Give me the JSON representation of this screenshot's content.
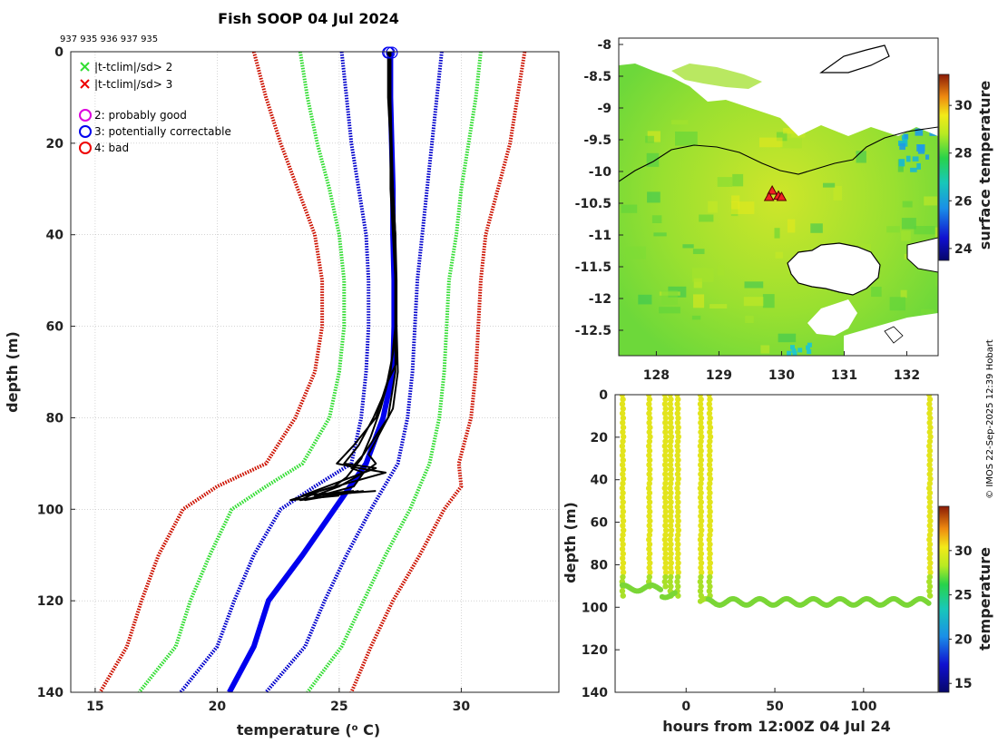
{
  "colors": {
    "limit_inner": "#33dd33",
    "limit_mid": "#0000cc",
    "limit_outer": "#cc1100",
    "profile": "#000000",
    "mean_profile": "#0000ee",
    "flag_good": "#dd00dd",
    "flag_correctable": "#0000ee",
    "flag_bad": "#ee0000",
    "land": "#ffffff"
  },
  "chart_data": [
    {
      "id": "profiles",
      "type": "line",
      "title": "Fish SOOP 04 Jul 2024",
      "subtitle": "937 935 936 937 935",
      "xlabel": "temperature (",
      "xlabel_sup": "o",
      "xlabel_end": " C)",
      "ylabel": "depth (m)",
      "xlim": [
        14,
        34
      ],
      "ylim": [
        0,
        140
      ],
      "xticks": [
        15,
        20,
        25,
        30
      ],
      "yticks": [
        0,
        20,
        40,
        60,
        80,
        100,
        120,
        140
      ],
      "legend": {
        "placement": "top-left",
        "crosses": [
          {
            "label": "|t-tclim|/sd> 2",
            "color": "#33dd33"
          },
          {
            "label": "|t-tclim|/sd> 3",
            "color": "#ee0000"
          }
        ],
        "circles": [
          {
            "label": "2: probably good",
            "color": "#dd00dd"
          },
          {
            "label": "3: potentially correctable",
            "color": "#0000ee"
          },
          {
            "label": "4: bad",
            "color": "#ee0000"
          }
        ]
      },
      "limit_curves": [
        {
          "name": "outer-left",
          "color": "#cc1100",
          "points": [
            [
              21.5,
              0
            ],
            [
              22.0,
              10
            ],
            [
              22.6,
              20
            ],
            [
              23.3,
              30
            ],
            [
              24.0,
              40
            ],
            [
              24.3,
              50
            ],
            [
              24.3,
              60
            ],
            [
              24.0,
              70
            ],
            [
              23.2,
              80
            ],
            [
              22.0,
              90
            ],
            [
              20.0,
              95
            ],
            [
              18.6,
              100
            ],
            [
              17.6,
              110
            ],
            [
              16.9,
              120
            ],
            [
              16.3,
              130
            ],
            [
              15.2,
              140
            ]
          ]
        },
        {
          "name": "mid-left",
          "color": "#33dd33",
          "points": [
            [
              23.4,
              0
            ],
            [
              23.7,
              10
            ],
            [
              24.1,
              20
            ],
            [
              24.6,
              30
            ],
            [
              25.0,
              40
            ],
            [
              25.2,
              50
            ],
            [
              25.2,
              60
            ],
            [
              25.0,
              70
            ],
            [
              24.6,
              80
            ],
            [
              23.5,
              90
            ],
            [
              22.0,
              95
            ],
            [
              20.6,
              100
            ],
            [
              19.7,
              110
            ],
            [
              18.9,
              120
            ],
            [
              18.3,
              130
            ],
            [
              16.8,
              140
            ]
          ]
        },
        {
          "name": "inner-left",
          "color": "#0000cc",
          "points": [
            [
              25.1,
              0
            ],
            [
              25.3,
              10
            ],
            [
              25.5,
              20
            ],
            [
              25.8,
              30
            ],
            [
              26.1,
              40
            ],
            [
              26.2,
              50
            ],
            [
              26.2,
              60
            ],
            [
              26.1,
              70
            ],
            [
              25.9,
              80
            ],
            [
              25.5,
              90
            ],
            [
              24.0,
              95
            ],
            [
              22.6,
              100
            ],
            [
              21.5,
              110
            ],
            [
              20.7,
              120
            ],
            [
              20.0,
              130
            ],
            [
              18.5,
              140
            ]
          ]
        },
        {
          "name": "inner-right",
          "color": "#0000cc",
          "points": [
            [
              29.2,
              0
            ],
            [
              29.0,
              10
            ],
            [
              28.8,
              20
            ],
            [
              28.6,
              30
            ],
            [
              28.4,
              40
            ],
            [
              28.2,
              50
            ],
            [
              28.1,
              60
            ],
            [
              28.0,
              70
            ],
            [
              27.8,
              80
            ],
            [
              27.4,
              90
            ],
            [
              26.3,
              100
            ],
            [
              25.3,
              110
            ],
            [
              24.4,
              120
            ],
            [
              23.6,
              130
            ],
            [
              22.0,
              140
            ]
          ]
        },
        {
          "name": "mid-right",
          "color": "#33dd33",
          "points": [
            [
              30.8,
              0
            ],
            [
              30.6,
              10
            ],
            [
              30.3,
              20
            ],
            [
              30.0,
              30
            ],
            [
              29.8,
              40
            ],
            [
              29.5,
              50
            ],
            [
              29.4,
              60
            ],
            [
              29.3,
              70
            ],
            [
              29.1,
              80
            ],
            [
              28.7,
              90
            ],
            [
              27.9,
              100
            ],
            [
              26.9,
              110
            ],
            [
              26.0,
              120
            ],
            [
              25.1,
              130
            ],
            [
              23.7,
              140
            ]
          ]
        },
        {
          "name": "outer-right",
          "color": "#cc1100",
          "points": [
            [
              32.6,
              0
            ],
            [
              32.3,
              10
            ],
            [
              32.0,
              20
            ],
            [
              31.5,
              30
            ],
            [
              31.0,
              40
            ],
            [
              30.8,
              50
            ],
            [
              30.7,
              60
            ],
            [
              30.6,
              70
            ],
            [
              30.4,
              80
            ],
            [
              29.9,
              90
            ],
            [
              30.0,
              95
            ],
            [
              29.3,
              100
            ],
            [
              28.3,
              110
            ],
            [
              27.2,
              120
            ],
            [
              26.3,
              130
            ],
            [
              25.5,
              140
            ]
          ]
        }
      ],
      "mean_profile": [
        [
          27.1,
          0
        ],
        [
          27.1,
          10
        ],
        [
          27.15,
          20
        ],
        [
          27.2,
          30
        ],
        [
          27.2,
          40
        ],
        [
          27.25,
          50
        ],
        [
          27.25,
          60
        ],
        [
          27.2,
          70
        ],
        [
          26.8,
          80
        ],
        [
          26.1,
          90
        ],
        [
          24.8,
          100
        ],
        [
          23.5,
          110
        ],
        [
          22.1,
          120
        ],
        [
          21.5,
          130
        ],
        [
          20.5,
          140
        ]
      ],
      "profiles": [
        {
          "points": [
            [
              27.0,
              0
            ],
            [
              27.05,
              10
            ],
            [
              27.1,
              20
            ],
            [
              27.1,
              30
            ],
            [
              27.2,
              40
            ],
            [
              27.3,
              50
            ],
            [
              27.3,
              60
            ],
            [
              27.3,
              70
            ],
            [
              27.0,
              80
            ],
            [
              26.0,
              88
            ],
            [
              25.5,
              91
            ],
            [
              26.0,
              92
            ],
            [
              25.0,
              95
            ],
            [
              24.0,
              97
            ],
            [
              26.5,
              96
            ]
          ]
        },
        {
          "points": [
            [
              27.1,
              0
            ],
            [
              27.1,
              10
            ],
            [
              27.15,
              20
            ],
            [
              27.2,
              30
            ],
            [
              27.3,
              40
            ],
            [
              27.35,
              50
            ],
            [
              27.35,
              60
            ],
            [
              27.4,
              70
            ],
            [
              27.2,
              78
            ],
            [
              26.6,
              84
            ],
            [
              26.2,
              88
            ],
            [
              26.5,
              90
            ],
            [
              26.0,
              92
            ],
            [
              25.6,
              95
            ],
            [
              24.2,
              97
            ],
            [
              23.6,
              98
            ],
            [
              25.8,
              96
            ]
          ]
        },
        {
          "points": [
            [
              27.0,
              0
            ],
            [
              27.0,
              10
            ],
            [
              27.1,
              20
            ],
            [
              27.15,
              30
            ],
            [
              27.25,
              40
            ],
            [
              27.3,
              50
            ],
            [
              27.3,
              60
            ],
            [
              27.35,
              68
            ],
            [
              27.0,
              72
            ],
            [
              26.7,
              78
            ],
            [
              26.3,
              84
            ],
            [
              25.9,
              89
            ],
            [
              25.3,
              93
            ],
            [
              24.8,
              95
            ],
            [
              23.0,
              98
            ],
            [
              25.0,
              97
            ]
          ]
        },
        {
          "points": [
            [
              27.1,
              0
            ],
            [
              27.1,
              10
            ],
            [
              27.1,
              20
            ],
            [
              27.2,
              30
            ],
            [
              27.3,
              40
            ],
            [
              27.3,
              50
            ],
            [
              27.35,
              60
            ],
            [
              27.2,
              66
            ],
            [
              26.9,
              74
            ],
            [
              26.4,
              80
            ],
            [
              25.8,
              86
            ],
            [
              25.2,
              90
            ],
            [
              26.5,
              91
            ],
            [
              26.0,
              92
            ],
            [
              24.5,
              95
            ],
            [
              23.5,
              97
            ],
            [
              25.6,
              96
            ]
          ]
        },
        {
          "points": [
            [
              27.05,
              0
            ],
            [
              27.05,
              10
            ],
            [
              27.1,
              20
            ],
            [
              27.2,
              30
            ],
            [
              27.25,
              40
            ],
            [
              27.3,
              50
            ],
            [
              27.3,
              60
            ],
            [
              27.1,
              70
            ],
            [
              26.5,
              80
            ],
            [
              25.6,
              86
            ],
            [
              24.9,
              90
            ],
            [
              25.8,
              91
            ],
            [
              26.9,
              92
            ],
            [
              24.2,
              96
            ],
            [
              23.4,
              98
            ],
            [
              26.0,
              96
            ]
          ]
        }
      ]
    },
    {
      "id": "map",
      "type": "heatmap",
      "xlim": [
        127.4,
        132.5
      ],
      "ylim": [
        -12.9,
        -7.9
      ],
      "xticks": [
        128,
        129,
        130,
        131,
        132
      ],
      "yticks": [
        -8,
        -8.5,
        -9,
        -9.5,
        -10,
        -10.5,
        -11,
        -11.5,
        -12,
        -12.5
      ],
      "xtick_labels": [
        "128",
        "129",
        "130",
        "131",
        "132"
      ],
      "ytick_labels": [
        "-8",
        "-8.5",
        "-9",
        "-9.5",
        "-10",
        "-10.5",
        "-11",
        "-11.5",
        "-12",
        "-12.5"
      ],
      "colorbar_label": "surface temperature",
      "colorbar_range": [
        23.5,
        31.3
      ],
      "colorbar_ticks": [
        24,
        26,
        28,
        30
      ],
      "markers": [
        [
          129.85,
          -10.3
        ],
        [
          129.95,
          -10.38
        ],
        [
          129.8,
          -10.4
        ],
        [
          130.0,
          -10.4
        ]
      ],
      "marker_color": "#ee2222"
    },
    {
      "id": "time-depth",
      "type": "scatter",
      "xlabel": "hours from 12:00Z 04 Jul 24",
      "ylabel": "depth (m)",
      "xlim": [
        -40,
        142
      ],
      "ylim": [
        0,
        140
      ],
      "xticks": [
        0,
        50,
        100
      ],
      "yticks": [
        0,
        20,
        40,
        60,
        80,
        100,
        120,
        140
      ],
      "colorbar_label": "temperature",
      "colorbar_range": [
        14,
        35
      ],
      "colorbar_ticks": [
        15,
        20,
        25,
        30
      ],
      "profile_hours": [
        -36,
        -21,
        -12,
        -9,
        -5,
        8,
        13,
        137
      ]
    }
  ],
  "credit": "© IMOS 22-Sep-2025 12:39 Hobart"
}
